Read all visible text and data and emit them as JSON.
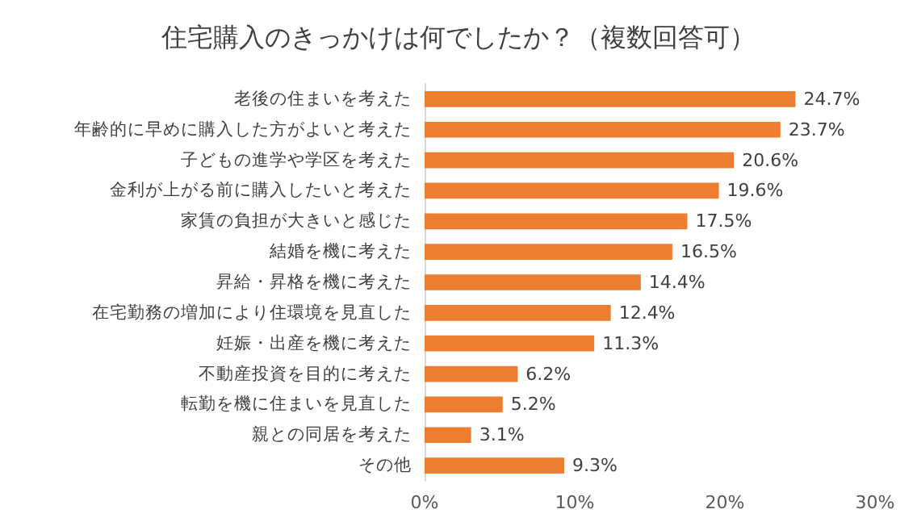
{
  "chart_data": {
    "type": "bar",
    "orientation": "horizontal",
    "title": "住宅購入のきっかけは何でしたか？（複数回答可）",
    "categories": [
      "老後の住まいを考えた",
      "年齢的に早めに購入した方がよいと考えた",
      "子どもの進学や学区を考えた",
      "金利が上がる前に購入したいと考えた",
      "家賃の負担が大きいと感じた",
      "結婚を機に考えた",
      "昇給・昇格を機に考えた",
      "在宅勤務の増加により住環境を見直した",
      "妊娠・出産を機に考えた",
      "不動産投資を目的に考えた",
      "転勤を機に住まいを見直した",
      "親との同居を考えた",
      "その他"
    ],
    "values": [
      24.7,
      23.7,
      20.6,
      19.6,
      17.5,
      16.5,
      14.4,
      12.4,
      11.3,
      6.2,
      5.2,
      3.1,
      9.3
    ],
    "value_labels": [
      "24.7%",
      "23.7%",
      "20.6%",
      "19.6%",
      "17.5%",
      "16.5%",
      "14.4%",
      "12.4%",
      "11.3%",
      "6.2%",
      "5.2%",
      "3.1%",
      "9.3%"
    ],
    "color": "#ed7d31",
    "xlim": [
      0,
      30
    ],
    "xticks": [
      {
        "value": 0,
        "label": "0%"
      },
      {
        "value": 10,
        "label": "10%"
      },
      {
        "value": 20,
        "label": "20%"
      },
      {
        "value": 30,
        "label": "30%"
      }
    ],
    "grid": false
  }
}
